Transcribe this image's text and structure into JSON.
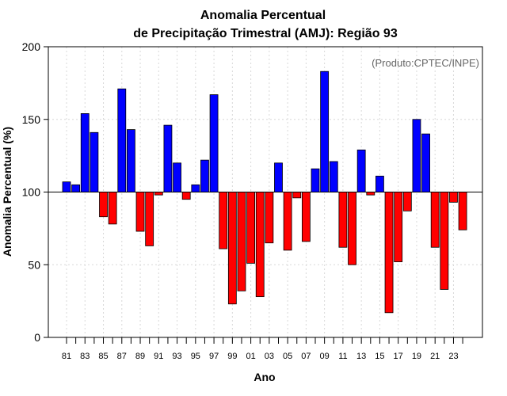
{
  "chart_data": {
    "type": "bar",
    "title": [
      "Anomalia Percentual",
      "de Precipitação Trimestral (AMJ): Região 93"
    ],
    "credit": "(Produto:CPTEC/INPE)",
    "xlabel": "Ano",
    "ylabel": "Anomalia Percentual (%)",
    "ylim": [
      0,
      200
    ],
    "yticks": [
      0,
      50,
      100,
      150,
      200
    ],
    "baseline": 100,
    "grid": true,
    "categories": [
      "81",
      "82",
      "83",
      "84",
      "85",
      "86",
      "87",
      "88",
      "89",
      "90",
      "91",
      "92",
      "93",
      "94",
      "95",
      "96",
      "97",
      "98",
      "99",
      "00",
      "01",
      "02",
      "03",
      "04",
      "05",
      "06",
      "07",
      "08",
      "09",
      "10",
      "11",
      "12",
      "13",
      "14",
      "15",
      "16",
      "17",
      "18",
      "19",
      "20",
      "21",
      "22",
      "23",
      "24"
    ],
    "xtick_labels": [
      "81",
      "83",
      "85",
      "87",
      "89",
      "91",
      "93",
      "95",
      "97",
      "99",
      "01",
      "03",
      "05",
      "07",
      "09",
      "11",
      "13",
      "15",
      "17",
      "19",
      "21",
      "23"
    ],
    "values": [
      107,
      105,
      154,
      141,
      83,
      78,
      171,
      143,
      73,
      63,
      98,
      146,
      120,
      95,
      105,
      122,
      167,
      61,
      23,
      32,
      51,
      28,
      65,
      120,
      60,
      96,
      66,
      116,
      183,
      121,
      62,
      50,
      129,
      98,
      111,
      17,
      52,
      87,
      150,
      140,
      62,
      33,
      93,
      74
    ],
    "colors": {
      "above": "#0000ff",
      "below": "#ff0000"
    }
  }
}
